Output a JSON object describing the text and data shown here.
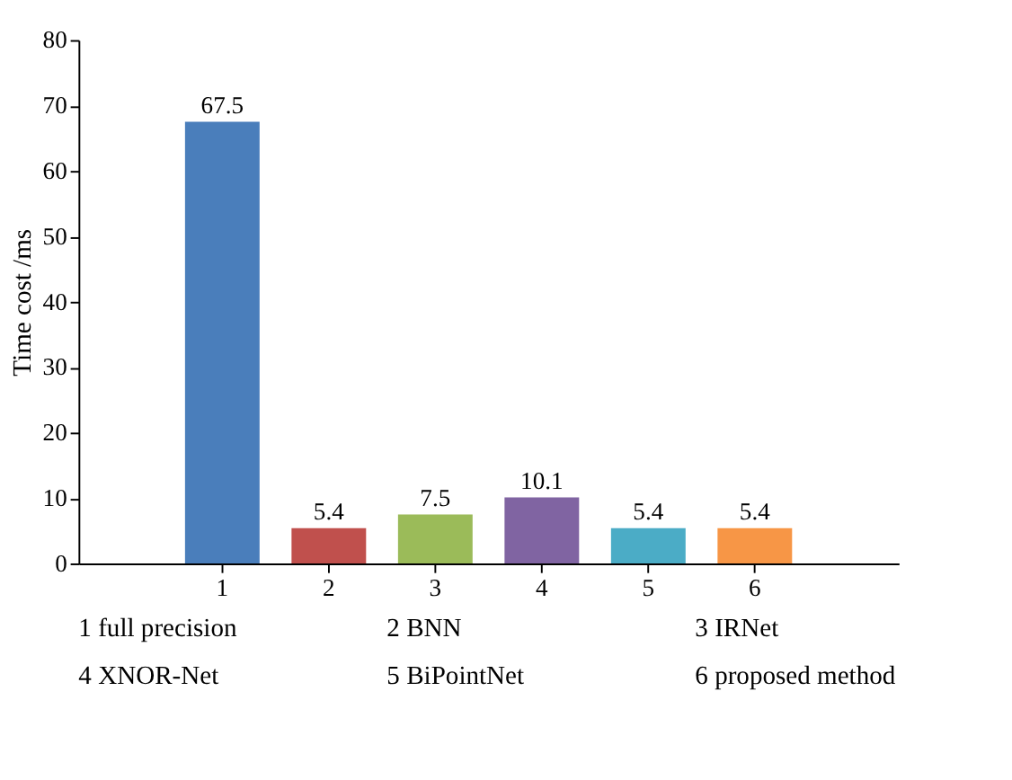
{
  "chart_data": {
    "type": "bar",
    "ylabel": "Time cost /ms",
    "categories": [
      "1",
      "2",
      "3",
      "4",
      "5",
      "6"
    ],
    "values": [
      67.5,
      5.4,
      7.5,
      10.1,
      5.4,
      5.4
    ],
    "colors": [
      "#4a7ebb",
      "#c0504d",
      "#9bbb59",
      "#8064a2",
      "#4bacc6",
      "#f79646"
    ],
    "ylim": [
      0,
      80
    ],
    "yticks": [
      0,
      10,
      20,
      30,
      40,
      50,
      60,
      70,
      80
    ],
    "grid": false,
    "data_labels": true,
    "annotations": [
      "1  full precision",
      "2  BNN",
      "3  IRNet",
      "4  XNOR-Net",
      "5  BiPointNet",
      "6  proposed method"
    ]
  }
}
